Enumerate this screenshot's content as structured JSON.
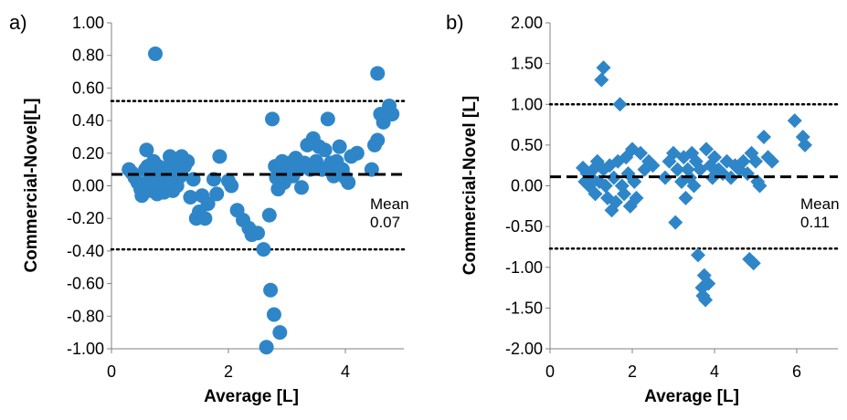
{
  "chart_data": [
    {
      "type": "scatter",
      "panel_label": "a)",
      "xlabel": "Average [L]",
      "ylabel": "Commercial-Novel[L]",
      "xlim": [
        0,
        5
      ],
      "ylim": [
        -1.0,
        1.0
      ],
      "x_ticks": [
        0,
        2,
        4
      ],
      "y_ticks": [
        1.0,
        0.8,
        0.6,
        0.4,
        0.2,
        0.0,
        -0.2,
        -0.4,
        -0.6,
        -0.8,
        -1.0
      ],
      "y_tick_labels": [
        "1.00",
        "0.80",
        "0.60",
        "0.40",
        "0.20",
        "0.00",
        "-0.20",
        "-0.40",
        "-0.60",
        "-0.80",
        "-1.00"
      ],
      "grid": false,
      "marker": "circle",
      "marker_color": "#2E86C8",
      "mean_line": 0.07,
      "limit_lines": [
        0.52,
        -0.39
      ],
      "annotation": {
        "line1": "Mean",
        "line2": "0.07"
      },
      "points": [
        [
          0.3,
          0.1
        ],
        [
          0.35,
          0.08
        ],
        [
          0.4,
          0.05
        ],
        [
          0.45,
          0.02
        ],
        [
          0.5,
          -0.02
        ],
        [
          0.52,
          -0.06
        ],
        [
          0.55,
          0.0
        ],
        [
          0.58,
          0.1
        ],
        [
          0.6,
          0.22
        ],
        [
          0.62,
          0.12
        ],
        [
          0.65,
          0.04
        ],
        [
          0.68,
          -0.03
        ],
        [
          0.7,
          0.08
        ],
        [
          0.72,
          0.15
        ],
        [
          0.75,
          0.02
        ],
        [
          0.78,
          -0.05
        ],
        [
          0.8,
          0.12
        ],
        [
          0.82,
          0.05
        ],
        [
          0.85,
          0.0
        ],
        [
          0.88,
          0.1
        ],
        [
          0.9,
          -0.04
        ],
        [
          0.92,
          0.06
        ],
        [
          0.95,
          0.02
        ],
        [
          0.98,
          0.12
        ],
        [
          1.0,
          0.18
        ],
        [
          1.02,
          0.08
        ],
        [
          1.05,
          -0.03
        ],
        [
          1.08,
          0.05
        ],
        [
          1.1,
          0.14
        ],
        [
          1.12,
          0.0
        ],
        [
          1.15,
          0.1
        ],
        [
          1.18,
          0.06
        ],
        [
          1.2,
          0.18
        ],
        [
          1.25,
          0.12
        ],
        [
          1.3,
          0.15
        ],
        [
          1.35,
          -0.07
        ],
        [
          1.4,
          0.04
        ],
        [
          1.45,
          -0.2
        ],
        [
          1.5,
          -0.16
        ],
        [
          1.55,
          -0.06
        ],
        [
          1.6,
          -0.2
        ],
        [
          1.65,
          -0.11
        ],
        [
          1.75,
          0.04
        ],
        [
          1.8,
          -0.05
        ],
        [
          1.85,
          0.18
        ],
        [
          2.0,
          0.03
        ],
        [
          2.05,
          0.0
        ],
        [
          2.15,
          -0.15
        ],
        [
          2.25,
          -0.21
        ],
        [
          2.35,
          -0.26
        ],
        [
          2.4,
          -0.3
        ],
        [
          2.5,
          -0.29
        ],
        [
          2.6,
          -0.39
        ],
        [
          2.65,
          -0.99
        ],
        [
          2.7,
          -0.18
        ],
        [
          2.72,
          -0.64
        ],
        [
          2.75,
          0.41
        ],
        [
          2.78,
          -0.79
        ],
        [
          2.8,
          0.12
        ],
        [
          2.82,
          0.05
        ],
        [
          2.85,
          -0.02
        ],
        [
          2.88,
          -0.9
        ],
        [
          2.9,
          0.1
        ],
        [
          2.92,
          0.15
        ],
        [
          2.95,
          0.02
        ],
        [
          3.0,
          0.1
        ],
        [
          3.05,
          0.14
        ],
        [
          3.1,
          0.06
        ],
        [
          3.15,
          0.17
        ],
        [
          3.2,
          0.1
        ],
        [
          3.25,
          -0.01
        ],
        [
          3.3,
          0.14
        ],
        [
          3.35,
          0.25
        ],
        [
          3.4,
          0.1
        ],
        [
          3.45,
          0.29
        ],
        [
          3.5,
          0.15
        ],
        [
          3.55,
          0.24
        ],
        [
          3.6,
          0.1
        ],
        [
          3.65,
          0.22
        ],
        [
          3.7,
          0.41
        ],
        [
          3.75,
          0.14
        ],
        [
          3.8,
          0.06
        ],
        [
          3.85,
          0.15
        ],
        [
          3.9,
          0.24
        ],
        [
          3.95,
          0.1
        ],
        [
          4.0,
          0.05
        ],
        [
          4.05,
          0.02
        ],
        [
          4.1,
          0.18
        ],
        [
          4.2,
          0.2
        ],
        [
          4.45,
          0.1
        ],
        [
          4.5,
          0.25
        ],
        [
          4.55,
          0.28
        ],
        [
          4.6,
          0.44
        ],
        [
          4.65,
          0.39
        ],
        [
          4.7,
          0.45
        ],
        [
          4.75,
          0.49
        ],
        [
          4.8,
          0.44
        ],
        [
          4.55,
          0.69
        ],
        [
          0.75,
          0.81
        ]
      ]
    },
    {
      "type": "scatter",
      "panel_label": "b)",
      "xlabel": "Average [L]",
      "ylabel": "Commercial-Novel [L]",
      "xlim": [
        0,
        7
      ],
      "ylim": [
        -2.0,
        2.0
      ],
      "x_ticks": [
        0,
        2,
        4,
        6
      ],
      "y_ticks": [
        2.0,
        1.5,
        1.0,
        0.5,
        0.0,
        -0.5,
        -1.0,
        -1.5,
        -2.0
      ],
      "y_tick_labels": [
        "2.00",
        "1.50",
        "1.00",
        "0.50",
        "0.00",
        "-0.50",
        "-1.00",
        "-1.50",
        "-2.00"
      ],
      "grid": false,
      "marker": "diamond",
      "marker_color": "#2E86C8",
      "mean_line": 0.11,
      "limit_lines": [
        1.0,
        -0.77
      ],
      "annotation": {
        "line1": "Mean",
        "line2": "0.11"
      },
      "points": [
        [
          0.8,
          0.22
        ],
        [
          0.85,
          0.05
        ],
        [
          0.9,
          0.15
        ],
        [
          0.95,
          0.0
        ],
        [
          1.0,
          0.1
        ],
        [
          1.05,
          0.2
        ],
        [
          1.1,
          -0.1
        ],
        [
          1.15,
          0.3
        ],
        [
          1.2,
          0.05
        ],
        [
          1.25,
          1.3
        ],
        [
          1.3,
          1.45
        ],
        [
          1.3,
          0.2
        ],
        [
          1.35,
          0.0
        ],
        [
          1.4,
          -0.15
        ],
        [
          1.45,
          0.25
        ],
        [
          1.5,
          -0.3
        ],
        [
          1.55,
          0.1
        ],
        [
          1.6,
          -0.2
        ],
        [
          1.65,
          0.3
        ],
        [
          1.7,
          1.0
        ],
        [
          1.75,
          0.0
        ],
        [
          1.8,
          -0.1
        ],
        [
          1.85,
          0.35
        ],
        [
          1.9,
          0.15
        ],
        [
          1.95,
          -0.25
        ],
        [
          2.0,
          0.45
        ],
        [
          2.05,
          0.05
        ],
        [
          2.1,
          -0.15
        ],
        [
          2.2,
          0.4
        ],
        [
          2.3,
          0.2
        ],
        [
          2.4,
          0.3
        ],
        [
          2.5,
          0.25
        ],
        [
          2.8,
          0.1
        ],
        [
          2.9,
          0.3
        ],
        [
          3.0,
          0.4
        ],
        [
          3.05,
          -0.45
        ],
        [
          3.1,
          0.2
        ],
        [
          3.2,
          0.05
        ],
        [
          3.25,
          0.35
        ],
        [
          3.3,
          -0.15
        ],
        [
          3.35,
          0.2
        ],
        [
          3.4,
          0.1
        ],
        [
          3.45,
          0.4
        ],
        [
          3.5,
          0.0
        ],
        [
          3.55,
          0.3
        ],
        [
          3.6,
          -0.85
        ],
        [
          3.65,
          0.2
        ],
        [
          3.7,
          -1.25
        ],
        [
          3.72,
          -1.35
        ],
        [
          3.75,
          -1.1
        ],
        [
          3.78,
          -1.4
        ],
        [
          3.8,
          0.45
        ],
        [
          3.85,
          -1.2
        ],
        [
          3.9,
          0.25
        ],
        [
          3.95,
          0.1
        ],
        [
          4.0,
          0.35
        ],
        [
          4.1,
          0.2
        ],
        [
          4.2,
          0.15
        ],
        [
          4.3,
          0.3
        ],
        [
          4.4,
          0.1
        ],
        [
          4.5,
          0.25
        ],
        [
          4.6,
          0.2
        ],
        [
          4.7,
          0.3
        ],
        [
          4.8,
          0.15
        ],
        [
          4.85,
          -0.9
        ],
        [
          4.9,
          0.4
        ],
        [
          4.95,
          -0.95
        ],
        [
          5.0,
          0.3
        ],
        [
          5.05,
          0.05
        ],
        [
          5.1,
          0.0
        ],
        [
          5.2,
          0.6
        ],
        [
          5.3,
          0.35
        ],
        [
          5.4,
          0.3
        ],
        [
          5.95,
          0.8
        ],
        [
          6.15,
          0.6
        ],
        [
          6.2,
          0.5
        ]
      ]
    }
  ]
}
